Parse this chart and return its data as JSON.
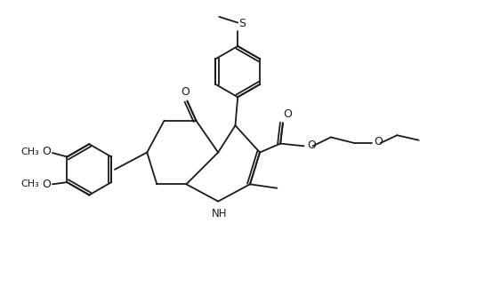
{
  "bg_color": "#ffffff",
  "line_color": "#1a1a1a",
  "line_width": 1.3,
  "font_size": 9,
  "figsize": [
    5.62,
    3.32
  ],
  "dpi": 100,
  "xlim": [
    0,
    10
  ],
  "ylim": [
    0,
    6
  ]
}
